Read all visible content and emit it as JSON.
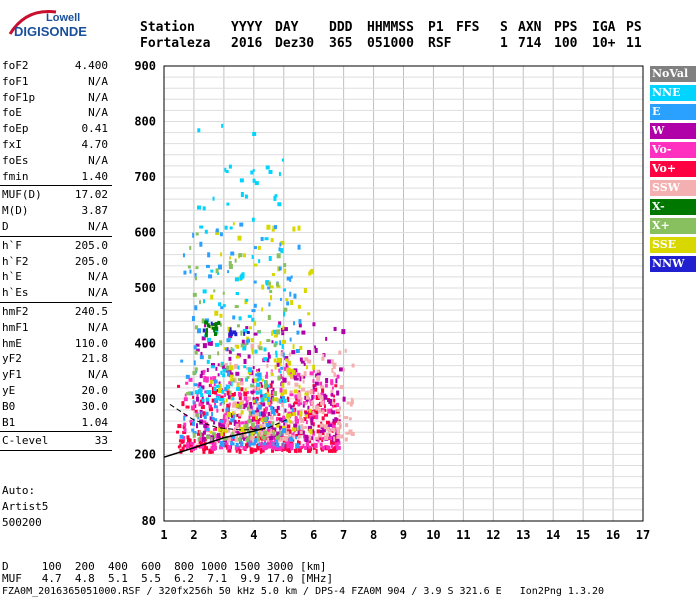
{
  "logo": {
    "line1": "Lowell",
    "line2": "DIGISONDE"
  },
  "header": {
    "labels": [
      "Station",
      "YYYY",
      "DAY",
      "DDD",
      "HHMMSS",
      "P1",
      "FFS",
      "S",
      "AXN",
      "PPS",
      "IGA",
      "PS"
    ],
    "values": [
      "Fortaleza",
      "2016",
      "Dez30",
      "365",
      "051000",
      "RSF",
      "",
      "1",
      "714",
      "100",
      "10+",
      "11"
    ]
  },
  "params_groups": [
    [
      {
        "name": "foF2",
        "value": "4.400"
      },
      {
        "name": "foF1",
        "value": "N/A"
      },
      {
        "name": "foF1p",
        "value": "N/A"
      },
      {
        "name": "foE",
        "value": "N/A"
      },
      {
        "name": "foEp",
        "value": "0.41"
      },
      {
        "name": "fxI",
        "value": "4.70"
      },
      {
        "name": "foEs",
        "value": "N/A"
      },
      {
        "name": "fmin",
        "value": "1.40"
      }
    ],
    [
      {
        "name": "MUF(D)",
        "value": "17.02"
      },
      {
        "name": "M(D)",
        "value": "3.87"
      },
      {
        "name": "D",
        "value": "N/A"
      }
    ],
    [
      {
        "name": "h`F",
        "value": "205.0"
      },
      {
        "name": "h`F2",
        "value": "205.0"
      },
      {
        "name": "h`E",
        "value": "N/A"
      },
      {
        "name": "h`Es",
        "value": "N/A"
      }
    ],
    [
      {
        "name": "hmF2",
        "value": "240.5"
      },
      {
        "name": "hmF1",
        "value": "N/A"
      },
      {
        "name": "hmE",
        "value": "110.0"
      },
      {
        "name": "yF2",
        "value": "21.8"
      },
      {
        "name": "yF1",
        "value": "N/A"
      },
      {
        "name": "yE",
        "value": "20.0"
      },
      {
        "name": "B0",
        "value": "30.0"
      },
      {
        "name": "B1",
        "value": "1.04"
      }
    ],
    [
      {
        "name": "C-level",
        "value": "33"
      }
    ]
  ],
  "auto": {
    "label": "Auto:",
    "artist": "Artist5",
    "version": "500200"
  },
  "bottom": {
    "d_row": "D     100  200  400  600  800 1000 1500 3000 [km]",
    "muf_row": "MUF   4.7  4.8  5.1  5.5  6.2  7.1  9.9 17.0 [MHz]",
    "footer": "FZA0M_2016365051000.RSF / 320fx256h 50 kHz 5.0 km / DPS-4 FZA0M 904 / 3.9 S 321.6 E   Ion2Png 1.3.20"
  },
  "legend": [
    {
      "label": "NoVal",
      "color": "#808080"
    },
    {
      "label": "NNE",
      "color": "#00d4ff"
    },
    {
      "label": "E",
      "color": "#2aa0ff"
    },
    {
      "label": "W",
      "color": "#b000a8"
    },
    {
      "label": "Vo-",
      "color": "#ff30c0"
    },
    {
      "label": "Vo+",
      "color": "#ff0040"
    },
    {
      "label": "SSW",
      "color": "#f4b0b0"
    },
    {
      "label": "X-",
      "color": "#007800"
    },
    {
      "label": "X+",
      "color": "#88c060"
    },
    {
      "label": "SSE",
      "color": "#d8d800"
    },
    {
      "label": "NNW",
      "color": "#2020d0"
    }
  ],
  "chart_data": {
    "type": "scatter",
    "xlim": [
      1,
      17
    ],
    "ylim": [
      80,
      900
    ],
    "x_ticks": [
      1,
      2,
      3,
      4,
      5,
      6,
      7,
      8,
      9,
      10,
      11,
      12,
      13,
      14,
      15,
      16,
      17
    ],
    "y_ticks": [
      80,
      200,
      300,
      400,
      500,
      600,
      700,
      800,
      900
    ],
    "grid": true,
    "clusters": [
      {
        "series": "Vo+",
        "x_range": [
          1.4,
          6.8
        ],
        "y_range": [
          210,
          330
        ],
        "color": "#ff0040"
      },
      {
        "series": "Vo-",
        "x_range": [
          1.6,
          6.8
        ],
        "y_range": [
          215,
          360
        ],
        "color": "#ff30c0"
      },
      {
        "series": "W",
        "x_range": [
          2.0,
          7.0
        ],
        "y_range": [
          230,
          440
        ],
        "color": "#b000a8"
      },
      {
        "series": "SSW",
        "x_range": [
          3.0,
          7.3
        ],
        "y_range": [
          230,
          400
        ],
        "color": "#f4b0b0"
      },
      {
        "series": "SSE",
        "x_range": [
          2.5,
          6.0
        ],
        "y_range": [
          240,
          620
        ],
        "color": "#d8d800"
      },
      {
        "series": "E",
        "x_range": [
          1.5,
          5.5
        ],
        "y_range": [
          220,
          620
        ],
        "color": "#2aa0ff"
      },
      {
        "series": "NNE",
        "x_range": [
          2.0,
          5.0
        ],
        "y_range": [
          300,
          800
        ],
        "color": "#00d4ff"
      },
      {
        "series": "X+",
        "x_range": [
          1.5,
          5.0
        ],
        "y_range": [
          230,
          600
        ],
        "color": "#88c060"
      },
      {
        "series": "X-",
        "x_range": [
          2.2,
          2.8
        ],
        "y_range": [
          420,
          450
        ],
        "color": "#007800"
      },
      {
        "series": "NNW",
        "x_range": [
          1.6,
          4.0
        ],
        "y_range": [
          420,
          440
        ],
        "color": "#2020d0"
      }
    ],
    "profile_line": [
      [
        1.0,
        195
      ],
      [
        2.0,
        212
      ],
      [
        3.0,
        230
      ],
      [
        4.0,
        242
      ],
      [
        4.4,
        248
      ]
    ],
    "dashed_line": [
      [
        1.2,
        290
      ],
      [
        2.0,
        262
      ],
      [
        2.8,
        248
      ],
      [
        3.6,
        244
      ],
      [
        4.4,
        246
      ],
      [
        5.2,
        265
      ]
    ]
  }
}
